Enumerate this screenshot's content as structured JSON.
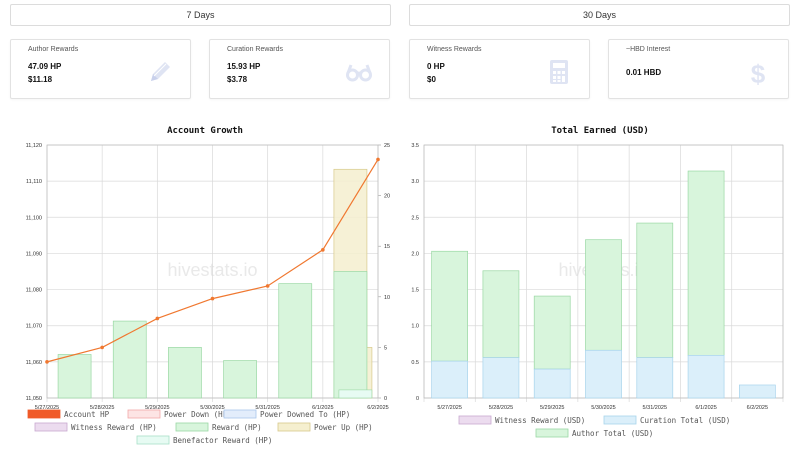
{
  "periods": {
    "seven": "7 Days",
    "thirty": "30 Days"
  },
  "cards": {
    "author": {
      "title": "Author Rewards",
      "v1": "47.09 HP",
      "v2": "$11.18",
      "icon": "pencil-icon"
    },
    "curation": {
      "title": "Curation Rewards",
      "v1": "15.93 HP",
      "v2": "$3.78",
      "icon": "glasses-icon"
    },
    "witness": {
      "title": "Witness Rewards",
      "v1": "0 HP",
      "v2": "$0",
      "icon": "calculator-icon"
    },
    "hbd": {
      "title": "~HBD Interest",
      "v1": "0.01 HBD",
      "icon": "dollar-icon"
    }
  },
  "colors": {
    "icon": "#dfe4f3",
    "line": "#f07830",
    "reward_fill": "#d8f5dc",
    "reward_stroke": "#9ad8a4",
    "powerup_fill": "#f5efcf",
    "powerup_stroke": "#d8c98a",
    "benefactor_fill": "#e7fbf3",
    "curation_fill": "#dbeffa",
    "curation_stroke": "#a8d4ec"
  },
  "watermark": "hivestats.io",
  "chart_data": [
    {
      "type": "bar",
      "title": "Account Growth",
      "categories": [
        "5/27/2025",
        "5/28/2025",
        "5/29/2025",
        "5/30/2025",
        "5/31/2025",
        "6/1/2025",
        "6/2/2025"
      ],
      "y_left": {
        "ticks": [
          "11,050",
          "11,060",
          "11,070",
          "11,080",
          "11,090",
          "11,100",
          "11,110",
          "11,120"
        ],
        "range": [
          11050,
          11120
        ]
      },
      "y_right": {
        "ticks": [
          "0",
          "5",
          "10",
          "15",
          "20",
          "25"
        ],
        "range": [
          0,
          25
        ]
      },
      "series": [
        {
          "name": "Account HP",
          "kind": "line",
          "axis": "left",
          "values": [
            11060,
            11064,
            11072,
            11077.5,
            11081,
            11091,
            11116
          ]
        },
        {
          "name": "Power Down (HP)",
          "kind": "bar",
          "axis": "right",
          "values": [
            0,
            0,
            0,
            0,
            0,
            0,
            0
          ]
        },
        {
          "name": "Power Downed To (HP)",
          "kind": "bar",
          "axis": "right",
          "values": [
            0,
            0,
            0,
            0,
            0,
            0,
            0
          ]
        },
        {
          "name": "Witness Reward (HP)",
          "kind": "bar",
          "axis": "right",
          "values": [
            0,
            0,
            0,
            0,
            0,
            0,
            0
          ]
        },
        {
          "name": "Reward (HP)",
          "kind": "bar",
          "axis": "right",
          "values": [
            4.3,
            7.6,
            5.0,
            3.7,
            11.3,
            12.5,
            0
          ]
        },
        {
          "name": "Power Up (HP)",
          "kind": "bar",
          "axis": "right",
          "values": [
            0,
            0,
            0,
            0,
            0,
            22.6,
            5.0
          ]
        },
        {
          "name": "Benefactor Reward (HP)",
          "kind": "bar",
          "axis": "right",
          "values": [
            0,
            0,
            0,
            0,
            0,
            0,
            0.8
          ]
        }
      ],
      "legend": [
        "Account HP",
        "Power Down (HP)",
        "Power Downed To (HP)",
        "Witness Reward (HP)",
        "Reward (HP)",
        "Power Up (HP)",
        "Benefactor Reward (HP)"
      ],
      "grid": true
    },
    {
      "type": "bar",
      "title": "Total Earned (USD)",
      "categories": [
        "5/27/2025",
        "5/28/2025",
        "5/29/2025",
        "5/30/2025",
        "5/31/2025",
        "6/1/2025",
        "6/2/2025"
      ],
      "y": {
        "ticks": [
          "0",
          "0.5",
          "1.0",
          "1.5",
          "2.0",
          "2.5",
          "3.0",
          "3.5"
        ],
        "range": [
          0,
          3.5
        ]
      },
      "series": [
        {
          "name": "Witness Reward (USD)",
          "values": [
            0,
            0,
            0,
            0,
            0,
            0,
            0
          ]
        },
        {
          "name": "Curation Total (USD)",
          "values": [
            0.51,
            0.56,
            0.4,
            0.66,
            0.56,
            0.59,
            0.18
          ]
        },
        {
          "name": "Author Total (USD)",
          "values": [
            1.52,
            1.2,
            1.01,
            1.53,
            1.86,
            2.55,
            0
          ]
        }
      ],
      "stacked": true,
      "legend": [
        "Witness Reward (USD)",
        "Curation Total (USD)",
        "Author Total (USD)"
      ],
      "grid": true
    }
  ]
}
